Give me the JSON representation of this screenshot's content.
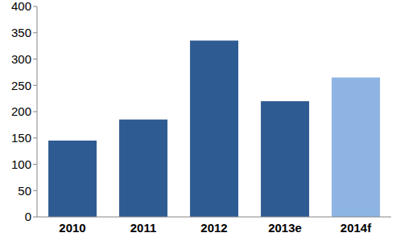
{
  "chart_data": {
    "type": "bar",
    "categories": [
      "2010",
      "2011",
      "2012",
      "2013e",
      "2014f"
    ],
    "values": [
      145,
      185,
      335,
      220,
      265
    ],
    "colors": [
      "#2f5b93",
      "#2f5b93",
      "#2f5b93",
      "#2f5b93",
      "#8db4e3"
    ],
    "ylim": [
      0,
      400
    ],
    "yticks": [
      0,
      50,
      100,
      150,
      200,
      250,
      300,
      350,
      400
    ],
    "grid": false
  }
}
